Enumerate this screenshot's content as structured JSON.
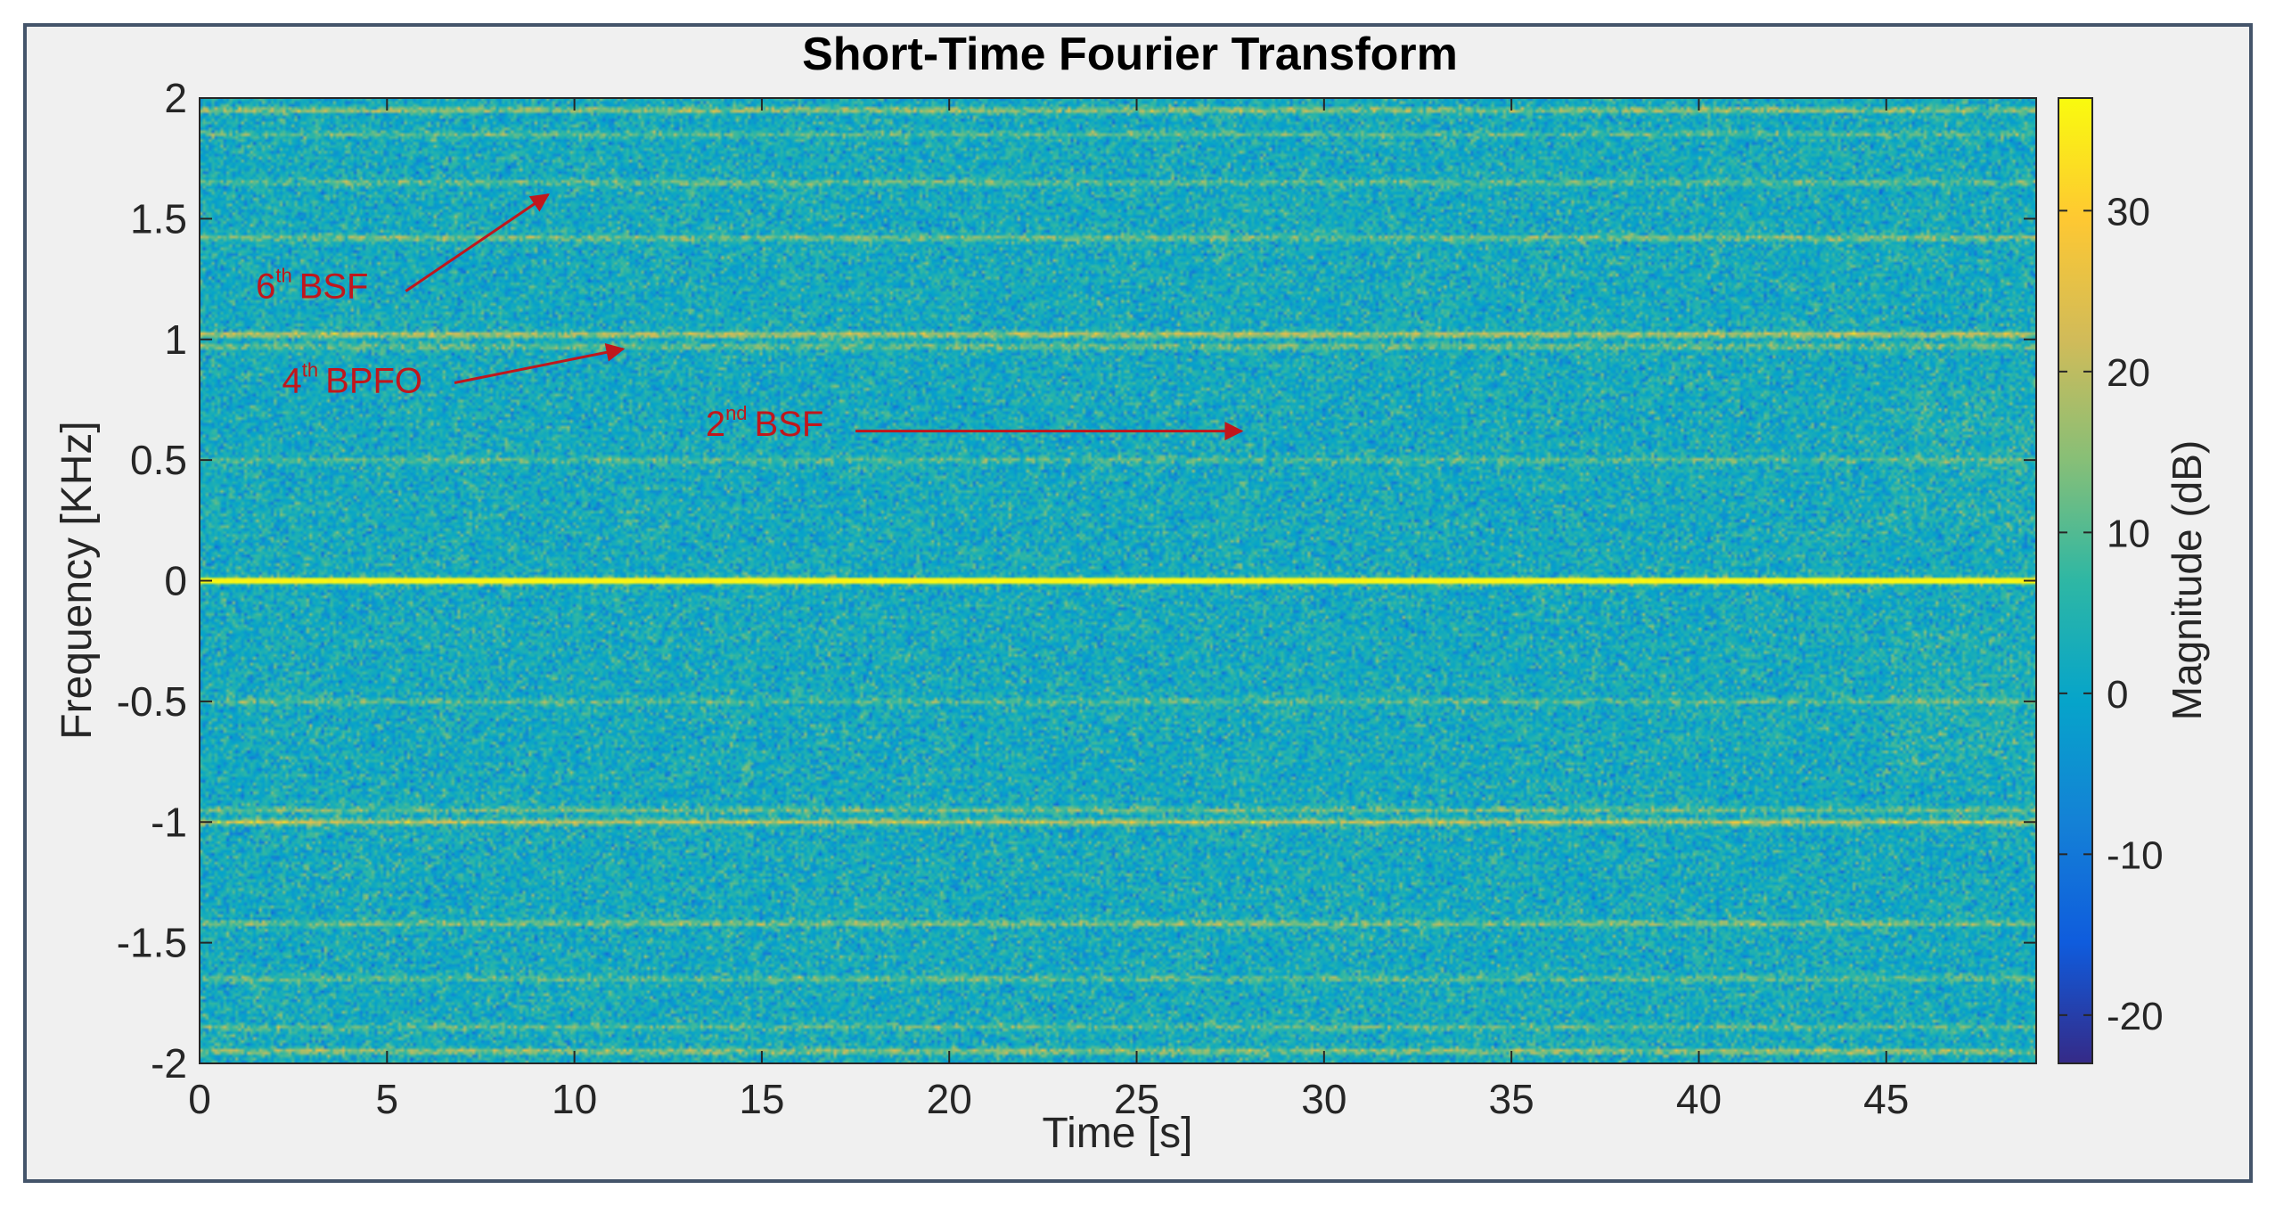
{
  "chart_data": {
    "type": "heatmap",
    "title": "Short-Time Fourier Transform",
    "xlabel": "Time [s]",
    "ylabel": "Frequency [KHz]",
    "xlim": [
      0,
      49
    ],
    "ylim": [
      -2,
      2
    ],
    "xticks": [
      0,
      5,
      10,
      15,
      20,
      25,
      30,
      35,
      40,
      45
    ],
    "yticks": [
      2,
      1.5,
      1,
      0.5,
      0,
      -0.5,
      -1,
      -1.5,
      -2
    ],
    "ytick_labels": [
      "2",
      "1.5",
      "1",
      "0.5",
      "0",
      "-0.5",
      "-1",
      "-1.5",
      "-2"
    ],
    "colorbar": {
      "label": "Magnitude (dB)",
      "range": [
        -23,
        37
      ],
      "ticks": [
        30,
        20,
        10,
        0,
        -10,
        -20
      ],
      "colormap": "parula",
      "colors": [
        "#352a87",
        "#0f5cdd",
        "#1481d6",
        "#06a4ca",
        "#2eb7a4",
        "#87bf77",
        "#d1bb59",
        "#fec832",
        "#f9fb0e"
      ]
    },
    "background_level_db": 2,
    "bands": [
      {
        "freq_khz": 1.95,
        "level_db": 17
      },
      {
        "freq_khz": 1.85,
        "level_db": 11
      },
      {
        "freq_khz": 1.65,
        "level_db": 12
      },
      {
        "freq_khz": 1.42,
        "level_db": 15
      },
      {
        "freq_khz": 1.02,
        "level_db": 21
      },
      {
        "freq_khz": 0.97,
        "level_db": 13
      },
      {
        "freq_khz": 0.5,
        "level_db": 11
      },
      {
        "freq_khz": 0.0,
        "level_db": 37
      },
      {
        "freq_khz": -0.5,
        "level_db": 11
      },
      {
        "freq_khz": -0.95,
        "level_db": 13
      },
      {
        "freq_khz": -1.0,
        "level_db": 21
      },
      {
        "freq_khz": -1.42,
        "level_db": 15
      },
      {
        "freq_khz": -1.65,
        "level_db": 12
      },
      {
        "freq_khz": -1.85,
        "level_db": 11
      },
      {
        "freq_khz": -1.95,
        "level_db": 17
      }
    ],
    "annotations": [
      {
        "base": "6",
        "sup": "th",
        "label": "BSF",
        "arrow_to": [
          9.3,
          1.6
        ]
      },
      {
        "base": "4",
        "sup": "th",
        "label": "BPFO",
        "arrow_to": [
          11.3,
          0.96
        ]
      },
      {
        "base": "2",
        "sup": "nd",
        "label": "BSF",
        "arrow_to": [
          27.8,
          0.62
        ]
      }
    ],
    "annotation_color": "#c0171c",
    "grid": false
  }
}
